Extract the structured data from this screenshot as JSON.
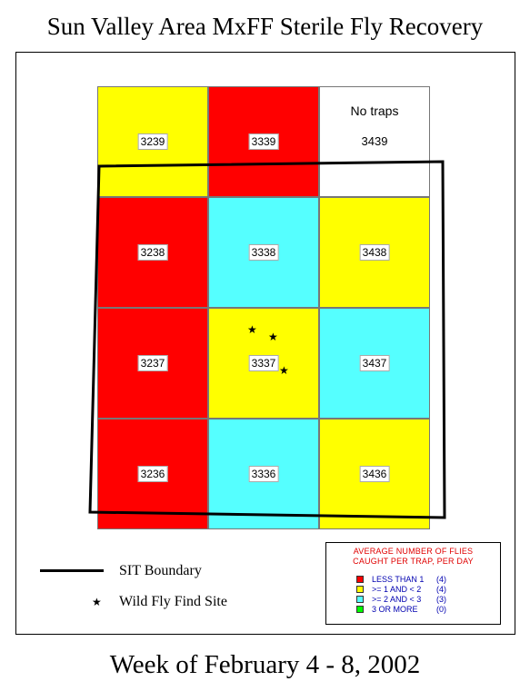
{
  "title": "Sun Valley Area MxFF Sterile Fly Recovery",
  "footer": "Week of February 4 - 8, 2002",
  "grid": {
    "rows": [
      [
        {
          "id": "3239",
          "color": "#ffff00"
        },
        {
          "id": "3339",
          "color": "#ff0000"
        },
        {
          "id": "3439",
          "color": "#ffffff",
          "note": "No traps"
        }
      ],
      [
        {
          "id": "3238",
          "color": "#ff0000"
        },
        {
          "id": "3338",
          "color": "#55ffff"
        },
        {
          "id": "3438",
          "color": "#ffff00"
        }
      ],
      [
        {
          "id": "3237",
          "color": "#ff0000"
        },
        {
          "id": "3337",
          "color": "#ffff00"
        },
        {
          "id": "3437",
          "color": "#55ffff"
        }
      ],
      [
        {
          "id": "3236",
          "color": "#ff0000"
        },
        {
          "id": "3336",
          "color": "#55ffff"
        },
        {
          "id": "3436",
          "color": "#ffff00"
        }
      ]
    ]
  },
  "wild_fly_finds": {
    "cell": "3337",
    "count": 3
  },
  "key": {
    "boundary_label": "SIT Boundary",
    "find_site_label": "Wild Fly Find Site"
  },
  "legend": {
    "title_line1": "AVERAGE NUMBER OF FLIES",
    "title_line2": "CAUGHT PER TRAP, PER DAY",
    "items": [
      {
        "label": "LESS THAN 1",
        "count": "(4)",
        "color": "#ff0000"
      },
      {
        "label": ">= 1 AND < 2",
        "count": "(4)",
        "color": "#ffff00"
      },
      {
        "label": ">= 2 AND < 3",
        "count": "(3)",
        "color": "#55ffff"
      },
      {
        "label": "3 OR MORE",
        "count": "(0)",
        "color": "#00ff00"
      }
    ]
  },
  "colors": {
    "legend_title": "#e00000",
    "legend_text": "#0000b0"
  }
}
